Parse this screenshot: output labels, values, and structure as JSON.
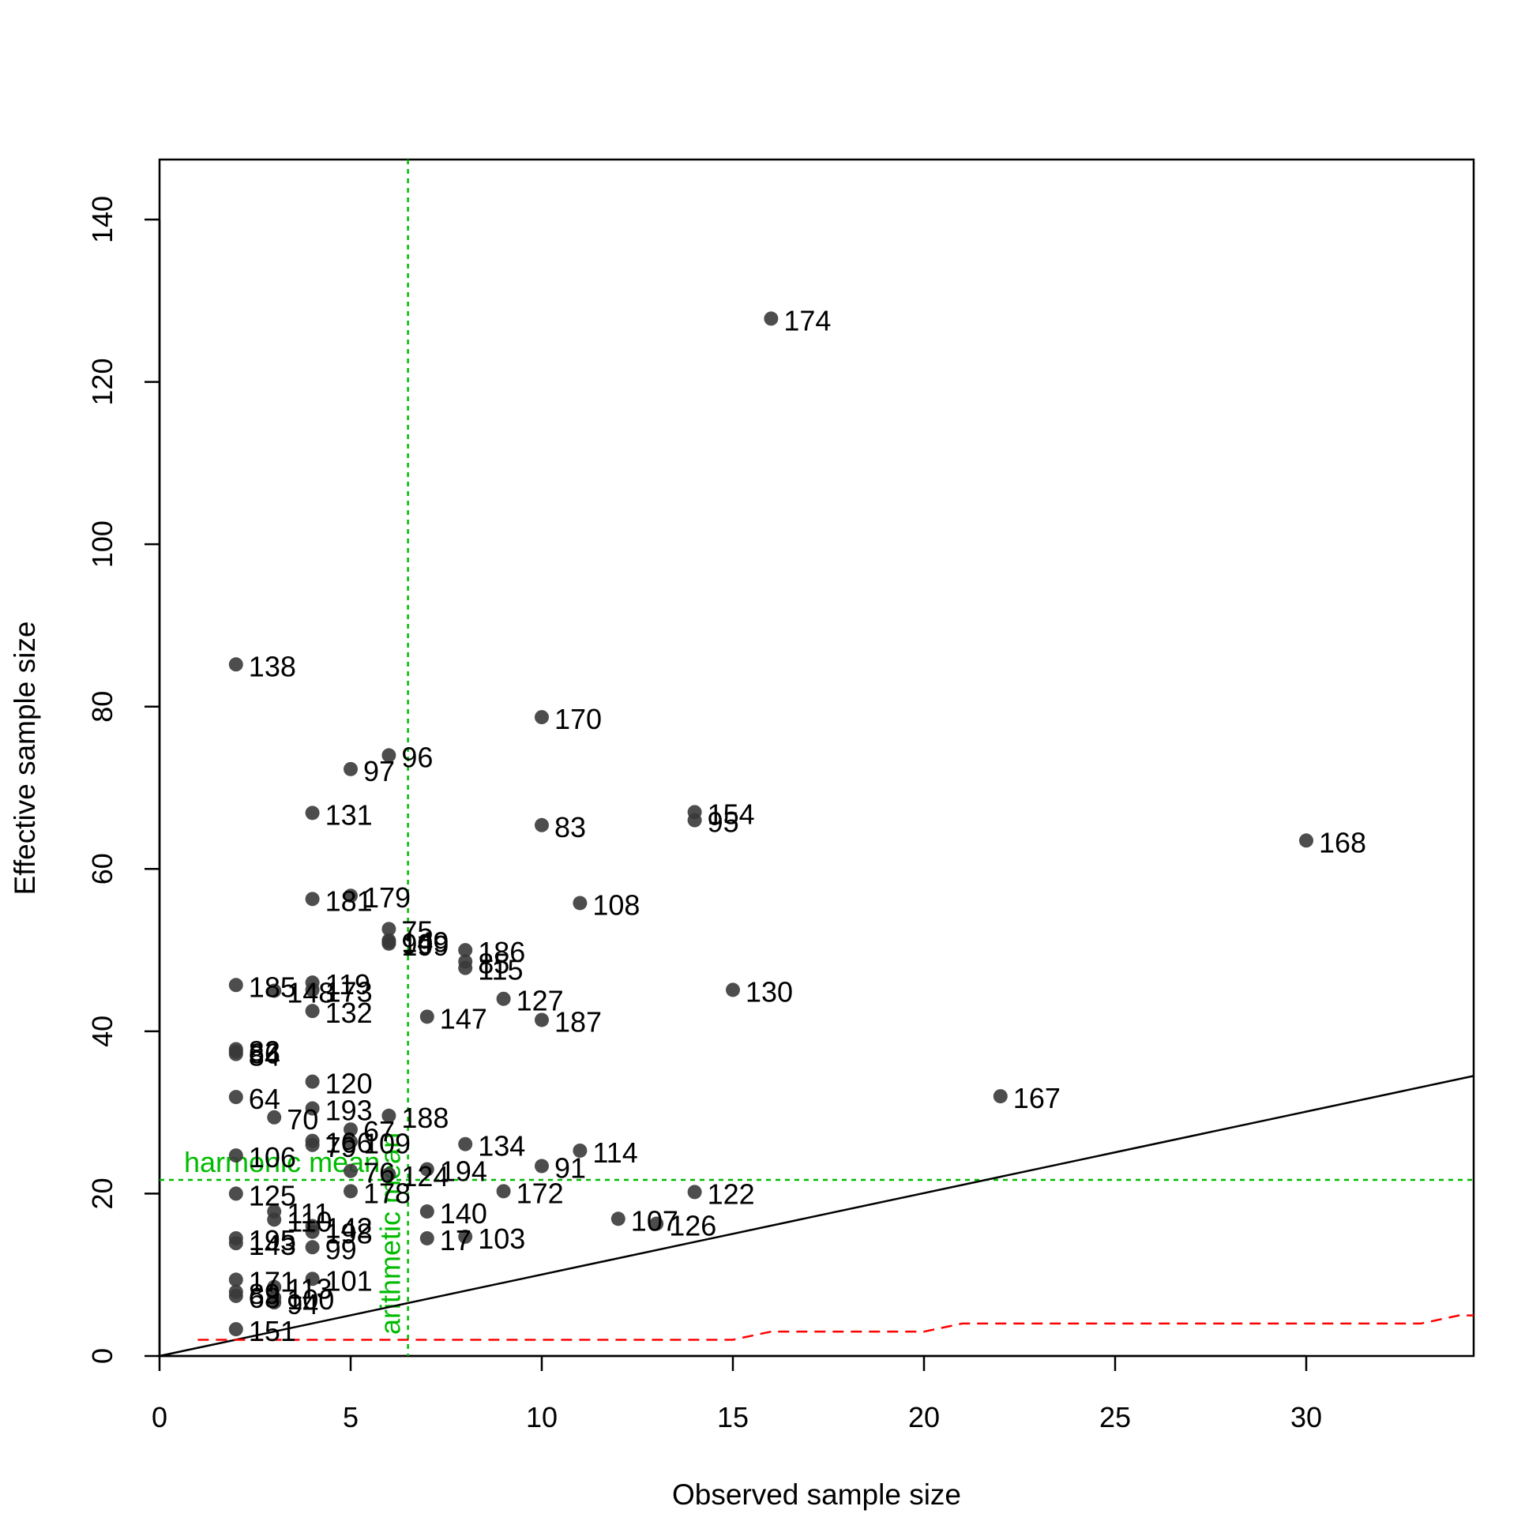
{
  "chart_data": {
    "type": "scatter",
    "xlabel": "Observed sample size",
    "ylabel": "Effective sample size",
    "xlim": [
      0,
      34.5
    ],
    "ylim": [
      0,
      147
    ],
    "x_ticks": [
      0,
      5,
      10,
      15,
      20,
      25,
      30
    ],
    "y_ticks": [
      0,
      20,
      40,
      60,
      80,
      100,
      120,
      140
    ],
    "grid": false,
    "colors": {
      "points": "#3a3a3a",
      "reference": "#00bb00",
      "threshold": "#ff0000",
      "identity": "#000000"
    },
    "reference_lines": {
      "harmonic_mean": {
        "label": "harmonic mean",
        "y": 21.7
      },
      "arithmetic_mean": {
        "label": "arithmetic mean",
        "x": 6.5
      }
    },
    "identity_line": {
      "slope": 1
    },
    "threshold_line": [
      [
        1,
        2
      ],
      [
        15,
        2
      ],
      [
        16,
        3
      ],
      [
        20,
        3
      ],
      [
        21,
        4
      ],
      [
        33,
        4
      ],
      [
        34,
        5
      ],
      [
        34.5,
        5
      ]
    ],
    "points": [
      {
        "label": "174",
        "x": 16,
        "y": 127.8
      },
      {
        "label": "138",
        "x": 2,
        "y": 85.2
      },
      {
        "label": "170",
        "x": 10,
        "y": 78.7
      },
      {
        "label": "96",
        "x": 6,
        "y": 74.0
      },
      {
        "label": "97",
        "x": 5,
        "y": 72.3
      },
      {
        "label": "131",
        "x": 4,
        "y": 66.9
      },
      {
        "label": "154",
        "x": 14,
        "y": 67.0
      },
      {
        "label": "95",
        "x": 14,
        "y": 66.0
      },
      {
        "label": "83",
        "x": 10,
        "y": 65.4
      },
      {
        "label": "168",
        "x": 30,
        "y": 63.5
      },
      {
        "label": "181",
        "x": 4,
        "y": 56.3
      },
      {
        "label": "179",
        "x": 5,
        "y": 56.7
      },
      {
        "label": "108",
        "x": 11,
        "y": 55.8
      },
      {
        "label": "75",
        "x": 6,
        "y": 52.6
      },
      {
        "label": "149",
        "x": 6,
        "y": 51.2
      },
      {
        "label": "90",
        "x": 6,
        "y": 51.0
      },
      {
        "label": "199",
        "x": 6,
        "y": 50.8
      },
      {
        "label": "186",
        "x": 8,
        "y": 50.0
      },
      {
        "label": "85",
        "x": 8,
        "y": 48.6
      },
      {
        "label": "115",
        "x": 8,
        "y": 47.8
      },
      {
        "label": "185",
        "x": 2,
        "y": 45.7
      },
      {
        "label": "119",
        "x": 4,
        "y": 46.0
      },
      {
        "label": "148",
        "x": 3,
        "y": 45.0
      },
      {
        "label": "173",
        "x": 4,
        "y": 45.1
      },
      {
        "label": "130",
        "x": 15,
        "y": 45.1
      },
      {
        "label": "127",
        "x": 9,
        "y": 44.0
      },
      {
        "label": "132",
        "x": 4,
        "y": 42.5
      },
      {
        "label": "147",
        "x": 7,
        "y": 41.8
      },
      {
        "label": "187",
        "x": 10,
        "y": 41.4
      },
      {
        "label": "82",
        "x": 2,
        "y": 37.8
      },
      {
        "label": "66",
        "x": 2,
        "y": 37.5
      },
      {
        "label": "84",
        "x": 2,
        "y": 37.2
      },
      {
        "label": "120",
        "x": 4,
        "y": 33.8
      },
      {
        "label": "64",
        "x": 2,
        "y": 31.9
      },
      {
        "label": "167",
        "x": 22,
        "y": 32.0
      },
      {
        "label": "193",
        "x": 4,
        "y": 30.5
      },
      {
        "label": "70",
        "x": 3,
        "y": 29.4
      },
      {
        "label": "188",
        "x": 6,
        "y": 29.6
      },
      {
        "label": "67",
        "x": 5,
        "y": 27.9
      },
      {
        "label": "166",
        "x": 4,
        "y": 26.5
      },
      {
        "label": "109",
        "x": 5,
        "y": 26.4
      },
      {
        "label": "79",
        "x": 4,
        "y": 26.0
      },
      {
        "label": "134",
        "x": 8,
        "y": 26.1
      },
      {
        "label": "114",
        "x": 11,
        "y": 25.3
      },
      {
        "label": "106",
        "x": 2,
        "y": 24.7
      },
      {
        "label": "91",
        "x": 10,
        "y": 23.4
      },
      {
        "label": "194",
        "x": 7,
        "y": 23.0
      },
      {
        "label": "124",
        "x": 6,
        "y": 22.4
      },
      {
        "label": "76",
        "x": 5,
        "y": 22.8
      },
      {
        "label": "178",
        "x": 5,
        "y": 20.3
      },
      {
        "label": "172",
        "x": 9,
        "y": 20.3
      },
      {
        "label": "122",
        "x": 14,
        "y": 20.2
      },
      {
        "label": "125",
        "x": 2,
        "y": 20.0
      },
      {
        "label": "140",
        "x": 7,
        "y": 17.8
      },
      {
        "label": "111",
        "x": 3,
        "y": 17.8
      },
      {
        "label": "110",
        "x": 3,
        "y": 16.8
      },
      {
        "label": "107",
        "x": 12,
        "y": 16.9
      },
      {
        "label": "126",
        "x": 13,
        "y": 16.3
      },
      {
        "label": "142",
        "x": 4,
        "y": 16.0
      },
      {
        "label": "198",
        "x": 4,
        "y": 15.3
      },
      {
        "label": "17",
        "x": 7,
        "y": 14.5
      },
      {
        "label": "103",
        "x": 8,
        "y": 14.7
      },
      {
        "label": "195",
        "x": 2,
        "y": 14.5
      },
      {
        "label": "143",
        "x": 2,
        "y": 13.9
      },
      {
        "label": "99",
        "x": 4,
        "y": 13.4
      },
      {
        "label": "101",
        "x": 4,
        "y": 9.5
      },
      {
        "label": "171",
        "x": 2,
        "y": 9.4
      },
      {
        "label": "113",
        "x": 3,
        "y": 8.5
      },
      {
        "label": "89",
        "x": 2,
        "y": 7.9
      },
      {
        "label": "68",
        "x": 2,
        "y": 7.4
      },
      {
        "label": "100",
        "x": 3,
        "y": 7.2
      },
      {
        "label": "94",
        "x": 3,
        "y": 6.6
      },
      {
        "label": "151",
        "x": 2,
        "y": 3.3
      }
    ]
  }
}
